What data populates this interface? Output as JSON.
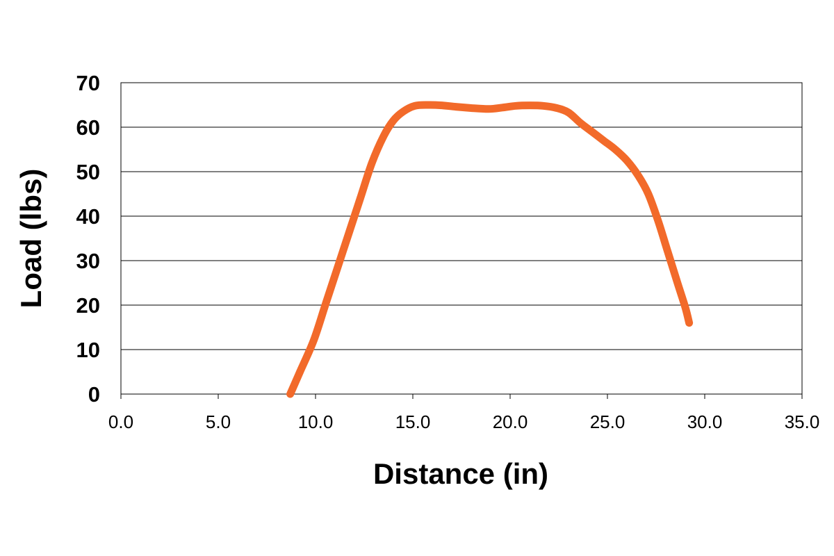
{
  "chart_data": {
    "type": "line",
    "title": "",
    "xlabel": "Distance (in)",
    "ylabel": "Load (lbs)",
    "xlim": [
      0,
      35
    ],
    "ylim": [
      0,
      70
    ],
    "x_ticks": [
      "0.0",
      "5.0",
      "10.0",
      "15.0",
      "20.0",
      "25.0",
      "30.0",
      "35.0"
    ],
    "y_ticks": [
      "0",
      "10",
      "20",
      "30",
      "40",
      "50",
      "60",
      "70"
    ],
    "grid": "horizontal",
    "legend": "none",
    "series": [
      {
        "color": "#f26a2a",
        "points": [
          [
            8.7,
            0
          ],
          [
            9.2,
            5
          ],
          [
            9.9,
            12
          ],
          [
            10.5,
            20
          ],
          [
            11.1,
            28
          ],
          [
            11.7,
            36
          ],
          [
            12.3,
            44
          ],
          [
            12.9,
            52
          ],
          [
            13.5,
            58
          ],
          [
            14.0,
            61.5
          ],
          [
            14.5,
            63.5
          ],
          [
            15.1,
            64.8
          ],
          [
            15.8,
            65.0
          ],
          [
            16.5,
            64.9
          ],
          [
            17.2,
            64.6
          ],
          [
            18.0,
            64.3
          ],
          [
            18.9,
            64.1
          ],
          [
            19.6,
            64.4
          ],
          [
            20.3,
            64.8
          ],
          [
            21.0,
            64.9
          ],
          [
            21.7,
            64.8
          ],
          [
            22.4,
            64.3
          ],
          [
            23.0,
            63.3
          ],
          [
            23.6,
            61.0
          ],
          [
            24.2,
            59.0
          ],
          [
            24.8,
            57.0
          ],
          [
            25.4,
            55.0
          ],
          [
            26.0,
            52.5
          ],
          [
            26.6,
            49.0
          ],
          [
            27.1,
            45.0
          ],
          [
            27.6,
            39.0
          ],
          [
            28.1,
            32.0
          ],
          [
            28.6,
            25.0
          ],
          [
            29.0,
            19.5
          ],
          [
            29.2,
            16.0
          ]
        ]
      }
    ]
  }
}
